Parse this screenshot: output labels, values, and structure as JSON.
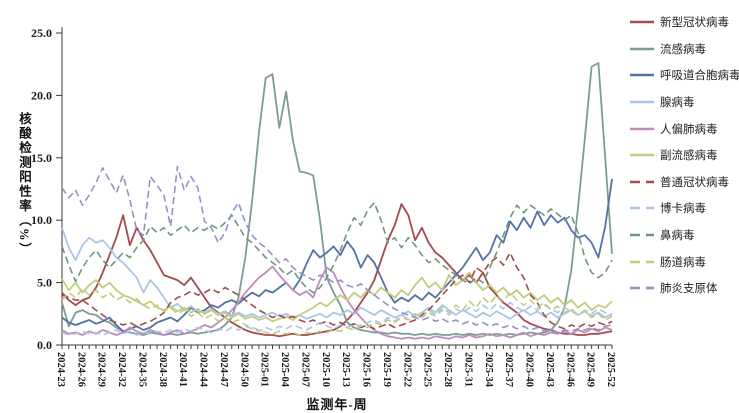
{
  "figure": {
    "y_axis_title": "核酸检测阳性率（%）",
    "x_axis_title": "监测年-周",
    "y_tick_labels": [
      "0.0",
      "5.0",
      "10.0",
      "15.0",
      "20.0",
      "25.0"
    ]
  },
  "chart_data": {
    "type": "line",
    "title": "",
    "xlabel": "监测年-周",
    "ylabel": "核酸检测阳性率（%）",
    "ylim": [
      0,
      25
    ],
    "y_tick_interval": 5,
    "grid": false,
    "legend_position": "right-outside",
    "x_label_every_n_ticks": 3,
    "categories": [
      "2024-23",
      "2024-24",
      "2024-25",
      "2024-26",
      "2024-27",
      "2024-28",
      "2024-29",
      "2024-30",
      "2024-31",
      "2024-32",
      "2024-33",
      "2024-34",
      "2024-35",
      "2024-36",
      "2024-37",
      "2024-38",
      "2024-39",
      "2024-40",
      "2024-41",
      "2024-42",
      "2024-43",
      "2024-44",
      "2024-45",
      "2024-46",
      "2024-47",
      "2024-48",
      "2024-49",
      "2024-50",
      "2024-51",
      "2024-52",
      "2025-01",
      "2025-02",
      "2025-03",
      "2025-04",
      "2025-05",
      "2025-06",
      "2025-07",
      "2025-08",
      "2025-09",
      "2025-10",
      "2025-11",
      "2025-12",
      "2025-13",
      "2025-14",
      "2025-15",
      "2025-16",
      "2025-17",
      "2025-18",
      "2025-19",
      "2025-20",
      "2025-21",
      "2025-22",
      "2025-23",
      "2025-24",
      "2025-25",
      "2025-26",
      "2025-27",
      "2025-28",
      "2025-29",
      "2025-30",
      "2025-31",
      "2025-32",
      "2025-33",
      "2025-34",
      "2025-35",
      "2025-36",
      "2025-37",
      "2025-38",
      "2025-39",
      "2025-40",
      "2025-41",
      "2025-42",
      "2025-43",
      "2025-44",
      "2025-45",
      "2025-46",
      "2025-47",
      "2025-48",
      "2025-49",
      "2025-50",
      "2025-51",
      "2025-52"
    ],
    "series": [
      {
        "name": "新型冠状病毒",
        "color": "#A34A4E",
        "style": "solid",
        "values": [
          4.2,
          3.6,
          3.2,
          3.6,
          3.8,
          4.6,
          5.8,
          7.2,
          8.6,
          10.4,
          8.0,
          9.4,
          8.4,
          7.6,
          6.6,
          5.6,
          5.4,
          5.2,
          4.8,
          5.4,
          4.6,
          3.8,
          3.0,
          2.6,
          2.2,
          1.8,
          1.5,
          1.2,
          1.0,
          0.9,
          0.8,
          0.8,
          0.7,
          0.8,
          0.9,
          0.8,
          0.8,
          0.9,
          1.0,
          1.1,
          1.2,
          1.5,
          2.0,
          2.6,
          3.4,
          4.2,
          5.2,
          6.8,
          8.4,
          9.6,
          11.3,
          10.4,
          8.4,
          9.4,
          8.2,
          7.4,
          7.0,
          6.4,
          5.8,
          5.2,
          5.6,
          5.0,
          5.8,
          4.6,
          4.0,
          3.4,
          3.0,
          2.6,
          2.0,
          1.7,
          1.5,
          1.3,
          1.2,
          1.0,
          0.9,
          0.9,
          0.8,
          0.8,
          0.9,
          0.9,
          1.0,
          1.1
        ]
      },
      {
        "name": "流感病毒",
        "color": "#7D9C96",
        "style": "solid",
        "values": [
          3.4,
          1.5,
          2.6,
          2.8,
          2.5,
          2.4,
          2.0,
          1.8,
          1.4,
          1.1,
          1.0,
          0.9,
          0.8,
          1.0,
          0.9,
          0.8,
          0.9,
          0.8,
          0.9,
          1.0,
          0.9,
          1.0,
          1.1,
          1.2,
          1.6,
          2.2,
          3.8,
          7.0,
          11.5,
          17.0,
          21.4,
          21.7,
          17.4,
          20.3,
          16.4,
          13.9,
          13.8,
          13.6,
          10.0,
          5.4,
          4.2,
          3.2,
          1.8,
          1.4,
          1.2,
          1.1,
          1.0,
          1.0,
          0.9,
          1.0,
          0.9,
          0.9,
          0.8,
          0.9,
          0.8,
          0.9,
          0.8,
          0.8,
          0.9,
          0.8,
          0.9,
          0.8,
          0.9,
          0.8,
          0.9,
          0.8,
          0.9,
          0.8,
          0.9,
          1.0,
          0.9,
          1.0,
          1.2,
          1.8,
          3.0,
          6.0,
          11.0,
          16.5,
          22.3,
          22.6,
          15.0,
          7.3
        ]
      },
      {
        "name": "呼吸道合胞病毒",
        "color": "#5272A6",
        "style": "solid",
        "values": [
          2.2,
          1.8,
          1.6,
          1.8,
          2.0,
          1.7,
          1.9,
          2.2,
          1.6,
          1.1,
          1.3,
          1.5,
          1.2,
          1.4,
          1.8,
          2.0,
          2.2,
          1.9,
          2.4,
          3.0,
          2.6,
          2.8,
          3.2,
          3.0,
          3.4,
          3.6,
          3.3,
          3.8,
          4.2,
          3.9,
          4.4,
          4.2,
          4.6,
          5.0,
          4.4,
          5.2,
          6.5,
          7.6,
          7.0,
          7.4,
          7.9,
          7.2,
          8.3,
          7.6,
          6.2,
          7.2,
          6.6,
          5.4,
          4.2,
          3.4,
          3.8,
          3.5,
          4.0,
          3.6,
          4.2,
          3.8,
          4.4,
          5.0,
          5.6,
          6.2,
          7.0,
          7.8,
          6.8,
          7.4,
          8.8,
          8.2,
          9.9,
          9.2,
          10.2,
          9.4,
          10.7,
          9.6,
          10.4,
          9.8,
          10.2,
          9.2,
          8.6,
          8.8,
          8.2,
          7.0,
          9.5,
          13.3
        ]
      },
      {
        "name": "腺病毒",
        "color": "#A9C6E8",
        "style": "solid",
        "values": [
          9.4,
          7.8,
          6.8,
          8.0,
          8.6,
          8.2,
          8.4,
          7.8,
          7.0,
          6.6,
          6.0,
          5.4,
          4.2,
          5.2,
          4.6,
          3.8,
          3.0,
          3.3,
          2.8,
          3.1,
          2.7,
          2.6,
          2.9,
          2.5,
          2.7,
          2.4,
          2.6,
          2.3,
          2.5,
          2.2,
          2.4,
          2.6,
          2.3,
          2.5,
          2.2,
          2.4,
          2.1,
          2.3,
          2.5,
          2.2,
          2.6,
          2.4,
          2.8,
          2.5,
          3.0,
          2.7,
          2.4,
          2.8,
          2.5,
          2.2,
          2.4,
          2.7,
          2.3,
          2.6,
          3.0,
          2.6,
          3.2,
          2.8,
          2.4,
          2.8,
          2.5,
          2.2,
          2.6,
          2.3,
          2.7,
          2.4,
          2.1,
          2.5,
          2.8,
          2.4,
          2.7,
          2.3,
          2.6,
          2.2,
          2.5,
          2.8,
          2.4,
          2.7,
          2.3,
          2.6,
          2.2,
          2.5
        ]
      },
      {
        "name": "人偏肺病毒",
        "color": "#C08CB8",
        "style": "solid",
        "values": [
          1.2,
          0.9,
          1.0,
          0.8,
          1.1,
          0.9,
          1.2,
          1.0,
          0.8,
          1.0,
          1.4,
          1.1,
          0.9,
          1.2,
          1.0,
          0.8,
          1.0,
          1.2,
          0.9,
          1.1,
          1.3,
          1.6,
          1.4,
          1.8,
          2.2,
          2.8,
          3.4,
          4.2,
          4.8,
          5.4,
          5.8,
          6.3,
          5.6,
          5.0,
          4.4,
          4.0,
          4.3,
          3.8,
          5.2,
          6.2,
          5.8,
          4.6,
          3.6,
          2.8,
          2.2,
          1.6,
          1.2,
          0.9,
          0.7,
          0.6,
          0.5,
          0.6,
          0.5,
          0.6,
          0.5,
          0.7,
          0.6,
          0.5,
          0.7,
          0.6,
          0.8,
          0.6,
          0.7,
          0.9,
          0.7,
          0.8,
          0.6,
          0.8,
          1.0,
          0.7,
          0.9,
          0.8,
          1.0,
          0.9,
          1.1,
          0.9,
          1.2,
          1.0,
          1.3,
          1.1,
          1.4,
          1.2
        ]
      },
      {
        "name": "副流感病毒",
        "color": "#C2CC7C",
        "style": "solid",
        "values": [
          5.3,
          4.4,
          5.0,
          4.2,
          4.8,
          5.2,
          4.6,
          5.0,
          4.4,
          4.0,
          3.8,
          3.5,
          3.2,
          3.5,
          3.0,
          2.8,
          3.1,
          2.7,
          3.0,
          2.6,
          2.9,
          2.5,
          2.8,
          2.4,
          2.6,
          2.2,
          2.5,
          2.1,
          2.3,
          2.0,
          2.2,
          1.9,
          2.1,
          2.3,
          2.0,
          2.4,
          2.7,
          3.0,
          3.4,
          3.1,
          3.6,
          4.0,
          3.6,
          4.2,
          3.8,
          4.4,
          4.0,
          4.6,
          4.2,
          3.8,
          4.4,
          4.0,
          4.8,
          5.4,
          4.6,
          5.0,
          4.4,
          5.6,
          4.8,
          5.2,
          5.8,
          5.0,
          4.4,
          4.8,
          4.2,
          4.6,
          4.0,
          4.4,
          3.8,
          4.2,
          3.6,
          4.0,
          3.4,
          3.8,
          3.2,
          3.6,
          3.0,
          3.4,
          2.8,
          3.2,
          3.0,
          3.5
        ]
      },
      {
        "name": "普通冠状病毒",
        "color": "#A34A4E",
        "style": "dashed",
        "values": [
          4.0,
          3.8,
          3.6,
          3.6,
          3.2,
          2.8,
          2.4,
          2.0,
          1.8,
          1.6,
          1.8,
          1.5,
          1.7,
          1.9,
          2.2,
          2.6,
          3.4,
          3.8,
          4.0,
          4.3,
          4.0,
          4.2,
          4.5,
          4.2,
          4.6,
          4.3,
          4.0,
          3.6,
          3.2,
          2.8,
          2.5,
          2.2,
          2.4,
          2.1,
          2.3,
          2.0,
          1.8,
          2.0,
          1.7,
          1.9,
          1.6,
          1.8,
          1.5,
          1.7,
          1.4,
          1.6,
          1.3,
          1.5,
          1.7,
          1.4,
          1.6,
          1.8,
          2.0,
          2.4,
          2.8,
          3.4,
          4.0,
          4.6,
          5.2,
          5.6,
          5.0,
          6.2,
          5.8,
          6.6,
          7.0,
          6.4,
          7.4,
          6.2,
          5.4,
          4.0,
          3.4,
          2.4,
          1.8,
          1.5,
          1.3,
          1.6,
          1.4,
          1.7,
          1.5,
          1.8,
          1.6,
          1.9
        ]
      },
      {
        "name": "博卡病毒",
        "color": "#A9C6E8",
        "style": "dashed",
        "values": [
          1.0,
          0.8,
          0.9,
          1.1,
          0.9,
          1.0,
          0.8,
          1.0,
          1.2,
          0.9,
          1.1,
          0.8,
          1.0,
          0.9,
          1.1,
          1.0,
          1.2,
          1.0,
          1.3,
          1.1,
          1.4,
          1.2,
          1.0,
          1.3,
          1.1,
          1.4,
          1.2,
          1.5,
          1.3,
          1.1,
          1.4,
          1.2,
          1.5,
          1.3,
          1.6,
          1.4,
          1.2,
          1.5,
          1.8,
          1.5,
          1.3,
          1.6,
          1.4,
          1.7,
          1.5,
          1.8,
          2.0,
          1.7,
          2.2,
          1.9,
          2.4,
          2.1,
          2.5,
          2.2,
          2.6,
          2.3,
          2.8,
          2.4,
          2.9,
          2.6,
          3.0,
          2.7,
          3.2,
          2.8,
          3.3,
          2.9,
          3.4,
          3.0,
          2.7,
          3.1,
          2.8,
          3.2,
          2.9,
          2.6,
          3.0,
          2.7,
          2.4,
          2.8,
          2.5,
          2.9,
          2.6,
          2.3
        ]
      },
      {
        "name": "鼻病毒",
        "color": "#6F9583",
        "style": "dashed",
        "values": [
          7.9,
          6.4,
          5.1,
          6.2,
          7.0,
          7.6,
          6.8,
          6.2,
          6.8,
          7.4,
          7.0,
          7.8,
          8.4,
          9.5,
          9.0,
          9.4,
          8.8,
          9.2,
          9.6,
          9.0,
          9.4,
          9.2,
          9.6,
          9.3,
          9.8,
          10.4,
          9.5,
          8.6,
          8.2,
          7.6,
          7.0,
          6.6,
          6.2,
          5.6,
          6.0,
          5.2,
          4.6,
          4.2,
          4.6,
          5.4,
          6.4,
          7.6,
          9.0,
          10.2,
          9.6,
          10.8,
          11.4,
          10.0,
          8.2,
          8.6,
          7.8,
          8.6,
          8.0,
          7.2,
          6.6,
          6.9,
          6.4,
          6.0,
          5.6,
          5.2,
          4.9,
          5.4,
          5.0,
          6.2,
          7.4,
          8.8,
          10.2,
          11.2,
          10.6,
          11.2,
          10.8,
          10.4,
          10.9,
          10.5,
          10.0,
          10.4,
          9.0,
          7.0,
          5.8,
          5.4,
          5.8,
          6.8
        ]
      },
      {
        "name": "肠道病毒",
        "color": "#C2CC7C",
        "style": "dashed",
        "values": [
          3.6,
          4.2,
          3.8,
          4.5,
          4.0,
          4.4,
          3.8,
          4.2,
          3.6,
          3.9,
          3.4,
          3.7,
          3.2,
          2.9,
          3.2,
          2.7,
          3.0,
          2.5,
          2.8,
          2.3,
          2.6,
          2.1,
          2.4,
          1.9,
          2.2,
          1.8,
          2.0,
          1.6,
          1.4,
          1.2,
          1.0,
          0.9,
          1.1,
          0.9,
          1.0,
          0.8,
          1.0,
          0.9,
          1.1,
          1.0,
          1.2,
          1.1,
          1.4,
          1.2,
          1.6,
          1.4,
          1.8,
          1.6,
          2.0,
          1.8,
          2.2,
          2.0,
          2.5,
          2.2,
          2.8,
          2.4,
          3.0,
          2.6,
          3.2,
          2.8,
          3.5,
          3.0,
          3.8,
          3.3,
          4.0,
          3.5,
          4.2,
          3.6,
          3.2,
          3.6,
          3.0,
          3.4,
          2.8,
          3.1,
          2.6,
          2.9,
          2.4,
          2.7,
          2.2,
          2.5,
          2.0,
          2.3
        ]
      },
      {
        "name": "肺炎支原体",
        "color": "#988FC5",
        "style": "dashed",
        "values": [
          12.6,
          11.8,
          12.4,
          11.2,
          12.0,
          13.0,
          14.2,
          13.2,
          12.2,
          13.6,
          11.6,
          9.2,
          8.8,
          13.5,
          12.8,
          12.0,
          9.5,
          14.3,
          12.4,
          13.5,
          12.6,
          9.9,
          9.4,
          8.2,
          9.0,
          10.6,
          11.4,
          9.8,
          8.8,
          8.2,
          7.8,
          7.2,
          6.6,
          6.9,
          6.2,
          5.8,
          5.5,
          5.2,
          5.6,
          5.4,
          5.0,
          5.2,
          4.8,
          4.6,
          4.9,
          4.4,
          4.0,
          3.6,
          3.2,
          2.9,
          2.6,
          2.4,
          2.2,
          2.0,
          2.2,
          1.9,
          2.1,
          1.8,
          2.0,
          1.7,
          1.9,
          1.6,
          1.8,
          1.5,
          1.7,
          1.4,
          1.6,
          1.3,
          1.5,
          1.2,
          1.4,
          1.1,
          1.3,
          1.0,
          1.2,
          1.1,
          1.3,
          1.2,
          1.4,
          1.2,
          1.5,
          1.6
        ]
      }
    ]
  }
}
